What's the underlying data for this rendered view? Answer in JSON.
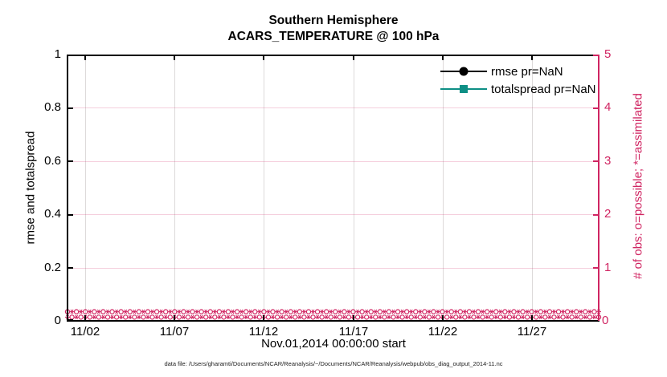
{
  "chart_data": {
    "type": "line",
    "title": "Southern Hemisphere",
    "subtitle": "ACARS_TEMPERATURE @ 100 hPa",
    "xlabel": "Nov.01,2014 00:00:00 start",
    "ylabel_left": "rmse and totalspread",
    "ylabel_right": "# of obs: o=possible; *=assimilated",
    "x_ticks": [
      "11/02",
      "11/07",
      "11/12",
      "11/17",
      "11/22",
      "11/27"
    ],
    "x_range": [
      "2014-11-01 00:00",
      "2014-11-30 18:00"
    ],
    "yticks_left": [
      "0",
      "0.2",
      "0.4",
      "0.6",
      "0.8",
      "1"
    ],
    "ylim_left": [
      0,
      1
    ],
    "yticks_right": [
      "0",
      "1",
      "2",
      "3",
      "4",
      "5"
    ],
    "ylim_right": [
      0,
      5
    ],
    "grid": true,
    "legend_position": "top-right-inside-boxoff",
    "series": [
      {
        "name": "rmse pr=NaN",
        "color": "#000000",
        "marker": "circle",
        "values": "NaN (no curve plotted)"
      },
      {
        "name": "totalspread pr=NaN",
        "color": "#0e8f85",
        "marker": "square",
        "values": "NaN (no curve plotted)"
      }
    ],
    "obs_counts": {
      "axis": "right",
      "color": "#d02562",
      "interval_hours": 6,
      "n_times": 120,
      "possible_marker": "o",
      "assimilated_marker": "*",
      "possible_value_all_times": 0,
      "assimilated_value_all_times": 0
    },
    "caption": "data file: /Users/gharamti/Documents/NCAR/Reanalysis/~/Documents/NCAR/Reanalysis/webpub/obs_diag_output_2014-11.nc"
  }
}
